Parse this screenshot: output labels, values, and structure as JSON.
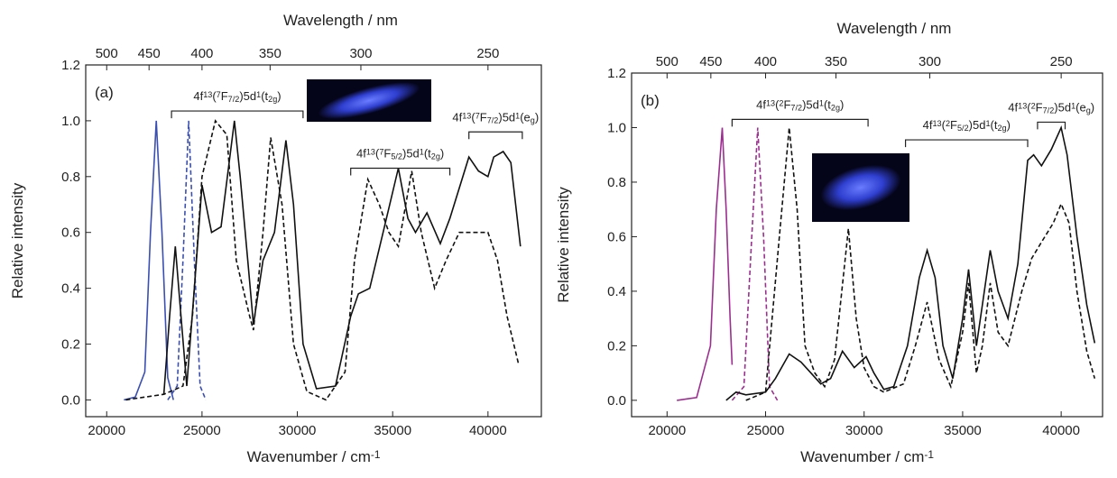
{
  "chart_data": [
    {
      "type": "line",
      "panel_label": "(a)",
      "x_title": [
        "Wavenumber / cm",
        {
          "sup": "-1"
        }
      ],
      "x2_title": "Wavelength / nm",
      "y_title": "Relative intensity",
      "xlim": [
        18900,
        42800
      ],
      "ylim": [
        -0.06,
        1.2
      ],
      "xticks": [
        20000,
        25000,
        30000,
        35000,
        40000
      ],
      "x2ticks": [
        500,
        450,
        400,
        350,
        300,
        250
      ],
      "yticks": [
        {
          "value": 0,
          "label": "0.0"
        },
        0.2,
        0.4,
        0.6,
        0.8,
        {
          "value": 1,
          "label": "1.0"
        },
        1.2
      ],
      "series": [
        {
          "color": "#3a4fb0",
          "dash": false,
          "x": [
            20900,
            21500,
            22000,
            22300,
            22600,
            22900,
            23200,
            23500
          ],
          "values": [
            0.0,
            0.01,
            0.1,
            0.6,
            1.0,
            0.6,
            0.08,
            0.0
          ]
        },
        {
          "color": "#3a4fb0",
          "dash": true,
          "x": [
            23200,
            23700,
            24000,
            24300,
            24600,
            24900,
            25200
          ],
          "values": [
            0.0,
            0.05,
            0.5,
            1.0,
            0.5,
            0.05,
            0.0
          ]
        },
        {
          "color": "#111111",
          "dash": false,
          "x": [
            23000,
            23300,
            23600,
            23900,
            24200,
            24600,
            25000,
            25500,
            26000,
            26700,
            27000,
            27400,
            27700,
            28200,
            28800,
            29400,
            29800,
            30300,
            31000,
            32000,
            32800,
            33200,
            33800,
            34500,
            35300,
            35800,
            36200,
            36800,
            37500,
            38000,
            39000,
            39500,
            40000,
            40300,
            40800,
            41200,
            41700
          ],
          "values": [
            0.02,
            0.3,
            0.55,
            0.3,
            0.05,
            0.4,
            0.77,
            0.6,
            0.62,
            1.0,
            0.8,
            0.5,
            0.27,
            0.5,
            0.6,
            0.93,
            0.7,
            0.2,
            0.04,
            0.05,
            0.3,
            0.38,
            0.4,
            0.6,
            0.83,
            0.65,
            0.6,
            0.67,
            0.56,
            0.65,
            0.87,
            0.82,
            0.8,
            0.87,
            0.89,
            0.85,
            0.55
          ]
        },
        {
          "color": "#111111",
          "dash": true,
          "x": [
            21000,
            23000,
            24000,
            24500,
            25000,
            25700,
            26300,
            26800,
            27500,
            27700,
            28200,
            28600,
            29200,
            29800,
            30500,
            31500,
            32500,
            33000,
            33700,
            34300,
            34800,
            35300,
            36000,
            36500,
            37200,
            37800,
            38500,
            39000,
            40000,
            40500,
            41000,
            41600
          ],
          "values": [
            0.0,
            0.02,
            0.05,
            0.3,
            0.8,
            1.0,
            0.95,
            0.5,
            0.3,
            0.25,
            0.6,
            0.94,
            0.7,
            0.2,
            0.03,
            0.0,
            0.1,
            0.5,
            0.79,
            0.7,
            0.6,
            0.55,
            0.82,
            0.6,
            0.4,
            0.5,
            0.6,
            0.6,
            0.6,
            0.5,
            0.3,
            0.13
          ]
        }
      ],
      "annotations": [
        {
          "text": [
            "4f",
            {
              "sup": "13"
            },
            "(",
            {
              "sup": "7"
            },
            "F",
            {
              "sub": "7/2"
            },
            ")5d",
            {
              "sup": "1"
            },
            "(t",
            {
              "sub": "2g"
            },
            ")"
          ],
          "x_range": [
            23400,
            30300
          ],
          "y": 1.035
        },
        {
          "text": [
            "4f",
            {
              "sup": "13"
            },
            "(",
            {
              "sup": "7"
            },
            "F",
            {
              "sub": "5/2"
            },
            ")5d",
            {
              "sup": "1"
            },
            "(t",
            {
              "sub": "2g"
            },
            ")"
          ],
          "x_range": [
            32800,
            38000
          ],
          "y": 0.83
        },
        {
          "text": [
            "4f",
            {
              "sup": "13"
            },
            "(",
            {
              "sup": "7"
            },
            "F",
            {
              "sub": "7/2"
            },
            ")5d",
            {
              "sup": "1"
            },
            "(e",
            {
              "sub": "g"
            },
            ")"
          ],
          "x_range": [
            39000,
            41800
          ],
          "y": 0.96
        }
      ]
    },
    {
      "type": "line",
      "panel_label": "(b)",
      "x_title": [
        "Wavenumber / cm",
        {
          "sup": "-1"
        }
      ],
      "x2_title": "Wavelength / nm",
      "y_title": "Relative intensity",
      "xlim": [
        18200,
        42100
      ],
      "ylim": [
        -0.06,
        1.2
      ],
      "xticks": [
        20000,
        25000,
        30000,
        35000,
        40000
      ],
      "x2ticks": [
        500,
        450,
        400,
        350,
        300,
        250
      ],
      "yticks": [
        {
          "value": 0,
          "label": "0.0"
        },
        0.2,
        0.4,
        0.6,
        0.8,
        {
          "value": 1,
          "label": "1.0"
        },
        1.2
      ],
      "series": [
        {
          "color": "#9b2f8f",
          "dash": false,
          "x": [
            20500,
            21500,
            22200,
            22500,
            22800,
            23000,
            23200,
            23300
          ],
          "values": [
            0.0,
            0.01,
            0.2,
            0.7,
            1.0,
            0.7,
            0.3,
            0.13
          ]
        },
        {
          "color": "#9b2f8f",
          "dash": true,
          "x": [
            23300,
            23900,
            24300,
            24600,
            24900,
            25200,
            25600
          ],
          "values": [
            0.0,
            0.05,
            0.6,
            1.0,
            0.6,
            0.05,
            0.0
          ]
        },
        {
          "color": "#111111",
          "dash": false,
          "x": [
            23000,
            23500,
            24000,
            25000,
            25500,
            26200,
            26800,
            27300,
            27800,
            28300,
            28900,
            29500,
            30100,
            30500,
            31000,
            31500,
            32200,
            32800,
            33200,
            33600,
            34000,
            34500,
            35000,
            35300,
            35700,
            36000,
            36400,
            36800,
            37300,
            37800,
            38300,
            38600,
            39000,
            39500,
            40000,
            40300,
            40800,
            41300,
            41700
          ],
          "values": [
            0.0,
            0.03,
            0.02,
            0.03,
            0.08,
            0.17,
            0.14,
            0.1,
            0.06,
            0.08,
            0.18,
            0.12,
            0.16,
            0.1,
            0.04,
            0.05,
            0.2,
            0.45,
            0.55,
            0.45,
            0.2,
            0.08,
            0.3,
            0.48,
            0.2,
            0.35,
            0.55,
            0.4,
            0.3,
            0.5,
            0.88,
            0.9,
            0.86,
            0.92,
            1.0,
            0.9,
            0.6,
            0.35,
            0.21
          ]
        },
        {
          "color": "#111111",
          "dash": true,
          "x": [
            24000,
            25000,
            25700,
            26200,
            26600,
            27000,
            27500,
            28000,
            28500,
            29200,
            29600,
            30000,
            30500,
            31000,
            32000,
            32600,
            33200,
            33800,
            34400,
            35000,
            35300,
            35700,
            36000,
            36400,
            36800,
            37300,
            38000,
            38500,
            39000,
            39600,
            40000,
            40400,
            40800,
            41300,
            41700
          ],
          "values": [
            0.0,
            0.03,
            0.6,
            1.0,
            0.7,
            0.2,
            0.1,
            0.05,
            0.15,
            0.63,
            0.3,
            0.12,
            0.05,
            0.03,
            0.06,
            0.2,
            0.36,
            0.15,
            0.05,
            0.25,
            0.43,
            0.1,
            0.2,
            0.43,
            0.25,
            0.2,
            0.4,
            0.52,
            0.58,
            0.65,
            0.72,
            0.65,
            0.4,
            0.18,
            0.08
          ]
        }
      ],
      "annotations": [
        {
          "text": [
            "4f",
            {
              "sup": "13"
            },
            "(",
            {
              "sup": "2"
            },
            "F",
            {
              "sub": "7/2"
            },
            ")5d",
            {
              "sup": "1"
            },
            "(t",
            {
              "sub": "2g"
            },
            ")"
          ],
          "x_range": [
            23300,
            30200
          ],
          "y": 1.03
        },
        {
          "text": [
            "4f",
            {
              "sup": "13"
            },
            "(",
            {
              "sup": "2"
            },
            "F",
            {
              "sub": "5/2"
            },
            ")5d",
            {
              "sup": "1"
            },
            "(t",
            {
              "sub": "2g"
            },
            ")"
          ],
          "x_range": [
            32100,
            38300
          ],
          "y": 0.955
        },
        {
          "text": [
            "4f",
            {
              "sup": "13"
            },
            "(",
            {
              "sup": "2"
            },
            "F",
            {
              "sub": "7/2"
            },
            ")5d",
            {
              "sup": "1"
            },
            "(e",
            {
              "sub": "g"
            },
            ")"
          ],
          "x_range": [
            38800,
            40200
          ],
          "y": 1.02
        }
      ]
    }
  ]
}
